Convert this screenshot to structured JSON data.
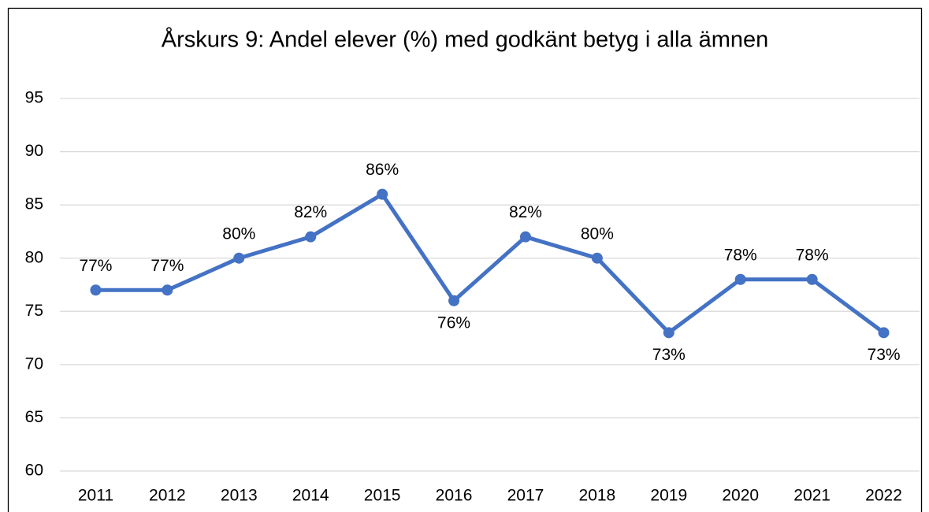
{
  "chart_data": {
    "type": "line",
    "title": "Årskurs 9: Andel elever (%) med godkänt betyg i alla ämnen",
    "categories": [
      "2011",
      "2012",
      "2013",
      "2014",
      "2015",
      "2016",
      "2017",
      "2018",
      "2019",
      "2020",
      "2021",
      "2022"
    ],
    "values": [
      77,
      77,
      80,
      82,
      86,
      76,
      82,
      80,
      73,
      78,
      78,
      73
    ],
    "value_labels": [
      "77%",
      "77%",
      "80%",
      "82%",
      "86%",
      "76%",
      "82%",
      "80%",
      "73%",
      "78%",
      "78%",
      "73%"
    ],
    "color": "#4472c4",
    "ylim": [
      60,
      95
    ],
    "yticks": [
      60,
      65,
      70,
      75,
      80,
      85,
      90,
      95
    ],
    "grid": true
  }
}
